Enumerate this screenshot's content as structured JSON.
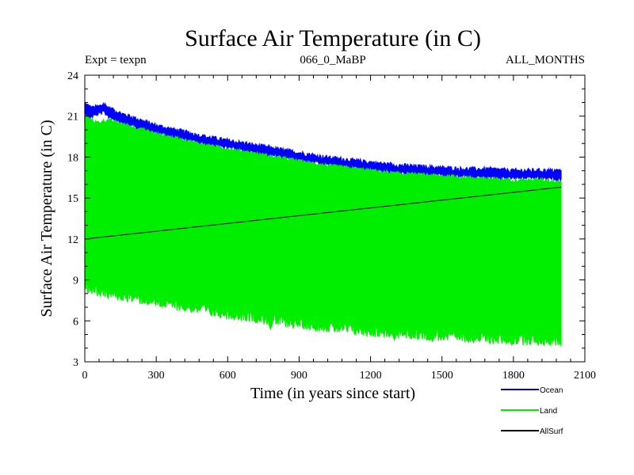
{
  "chart_data": {
    "type": "line",
    "title": "Surface Air Temperature (in C)",
    "subtitle_left": "Expt = texpn",
    "subtitle_center": "066_0_MaBP",
    "subtitle_right": "ALL_MONTHS",
    "xlabel": "Time (in years since start)",
    "ylabel": "Surface Air Temperature (in C)",
    "xlim": [
      0,
      2100
    ],
    "ylim": [
      3,
      24
    ],
    "xticks": [
      0,
      300,
      600,
      900,
      1200,
      1500,
      1800,
      2100
    ],
    "yticks": [
      3,
      6,
      9,
      12,
      15,
      18,
      21,
      24
    ],
    "grid": false,
    "legend_position": "bottom-right",
    "series": [
      {
        "name": "Ocean",
        "color": "#0000ff",
        "kind": "band",
        "x": [
          0,
          30,
          60,
          80,
          100,
          150,
          200,
          300,
          400,
          500,
          600,
          700,
          800,
          900,
          1000,
          1100,
          1200,
          1300,
          1400,
          1500,
          1600,
          1700,
          1800,
          1900,
          2000
        ],
        "y_low": [
          20.4,
          21.0,
          21.2,
          21.3,
          21.0,
          20.6,
          20.3,
          19.8,
          19.4,
          19.0,
          18.7,
          18.4,
          18.1,
          17.8,
          17.5,
          17.3,
          17.1,
          16.9,
          16.8,
          16.7,
          16.6,
          16.5,
          16.5,
          16.5,
          16.4
        ],
        "y_high": [
          21.9,
          21.6,
          21.7,
          21.9,
          21.6,
          21.2,
          20.9,
          20.3,
          19.9,
          19.5,
          19.2,
          18.9,
          18.6,
          18.3,
          18.0,
          17.8,
          17.6,
          17.4,
          17.3,
          17.2,
          17.1,
          17.1,
          17.0,
          17.0,
          17.0
        ]
      },
      {
        "name": "Land",
        "color": "#00ee00",
        "kind": "band",
        "x": [
          0,
          50,
          100,
          200,
          300,
          400,
          500,
          600,
          700,
          800,
          900,
          1000,
          1100,
          1200,
          1300,
          1400,
          1500,
          1600,
          1700,
          1800,
          1900,
          2000
        ],
        "y_low": [
          9.0,
          8.7,
          8.5,
          8.2,
          7.9,
          7.6,
          7.3,
          7.0,
          6.8,
          6.5,
          6.3,
          6.1,
          5.9,
          5.7,
          5.6,
          5.5,
          5.4,
          5.3,
          5.2,
          5.1,
          5.1,
          5.0
        ],
        "y_high": [
          21.0,
          20.5,
          20.7,
          20.2,
          19.7,
          19.3,
          18.9,
          18.6,
          18.3,
          18.0,
          17.7,
          17.4,
          17.2,
          17.0,
          16.8,
          16.7,
          16.6,
          16.5,
          16.4,
          16.3,
          16.3,
          16.2
        ],
        "min_dips": [
          [
            150,
            7.7
          ],
          [
            250,
            7.4
          ],
          [
            420,
            6.9
          ],
          [
            530,
            6.4
          ],
          [
            610,
            6.5
          ],
          [
            780,
            5.4
          ],
          [
            900,
            5.8
          ],
          [
            1050,
            5.5
          ],
          [
            1180,
            5.1
          ],
          [
            1300,
            4.6
          ],
          [
            1460,
            4.5
          ],
          [
            1560,
            4.9
          ],
          [
            1730,
            4.6
          ],
          [
            1810,
            4.8
          ],
          [
            1950,
            4.3
          ]
        ]
      },
      {
        "name": "AllSurf",
        "color": "#000000",
        "kind": "line",
        "x": [
          0,
          2000
        ],
        "y": [
          12.0,
          15.8
        ]
      }
    ]
  }
}
